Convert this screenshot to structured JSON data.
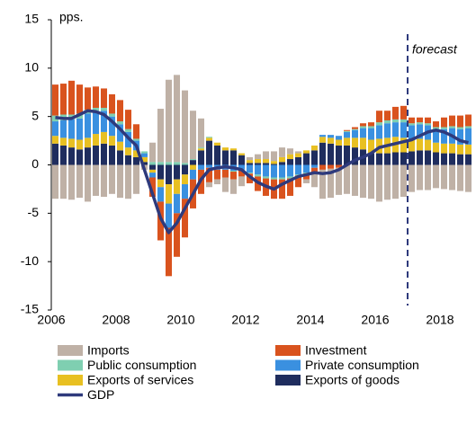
{
  "chart_data": {
    "type": "stacked_bar",
    "y_label": "pps.",
    "annotation": {
      "text": "forecast",
      "x": 2017
    },
    "x": [
      2006,
      2006.25,
      2006.5,
      2006.75,
      2007,
      2007.25,
      2007.5,
      2007.75,
      2008,
      2008.25,
      2008.5,
      2008.75,
      2009,
      2009.25,
      2009.5,
      2009.75,
      2010,
      2010.25,
      2010.5,
      2010.75,
      2011,
      2011.25,
      2011.5,
      2011.75,
      2012,
      2012.25,
      2012.5,
      2012.75,
      2013,
      2013.25,
      2013.5,
      2013.75,
      2014,
      2014.25,
      2014.5,
      2014.75,
      2015,
      2015.25,
      2015.5,
      2015.75,
      2016,
      2016.25,
      2016.5,
      2016.75,
      2017,
      2017.25,
      2017.5,
      2017.75,
      2018,
      2018.25,
      2018.5,
      2018.75
    ],
    "xlim": [
      2006,
      2019
    ],
    "xticks": [
      2006,
      2008,
      2010,
      2012,
      2014,
      2016,
      2018
    ],
    "ylim": [
      -15,
      15
    ],
    "yticks": [
      -15,
      -10,
      -5,
      0,
      5,
      10,
      15
    ],
    "series": [
      {
        "name": "Imports",
        "color": "#bfb1a6",
        "values": [
          -3.5,
          -3.5,
          -3.6,
          -3.4,
          -3.8,
          -3.2,
          -3.3,
          -3.0,
          -3.4,
          -3.5,
          -3.0,
          -0.5,
          2.0,
          5.5,
          8.5,
          9.0,
          7.5,
          5.0,
          3.0,
          -0.5,
          -0.5,
          -1.5,
          -1.5,
          -1.0,
          0.3,
          0.5,
          0.8,
          1.0,
          1.0,
          0.6,
          0.2,
          -0.4,
          -1.5,
          -3.0,
          -3.0,
          -2.8,
          -3.0,
          -3.2,
          -3.4,
          -3.5,
          -3.8,
          -3.6,
          -3.5,
          -3.3,
          -2.8,
          -2.6,
          -2.6,
          -2.4,
          -2.5,
          -2.6,
          -2.7,
          -2.8
        ]
      },
      {
        "name": "Investment",
        "color": "#d9531e",
        "values": [
          3.2,
          3.2,
          3.5,
          3.0,
          2.3,
          2.2,
          2.0,
          2.0,
          2.2,
          2.0,
          1.5,
          0,
          -2.0,
          -4.0,
          -5.0,
          -4.5,
          -4.0,
          -3.0,
          -2.5,
          -1.5,
          -1.0,
          -0.8,
          -0.8,
          -0.6,
          -1.0,
          -1.5,
          -1.8,
          -2.0,
          -2.0,
          -1.8,
          -1.2,
          -0.6,
          -0.5,
          -0.5,
          -0.4,
          -0.3,
          0.1,
          0.2,
          0.3,
          0.4,
          1.2,
          1.0,
          1.3,
          1.4,
          0.6,
          0.5,
          0.6,
          0.6,
          1.0,
          1.1,
          1.2,
          1.2
        ]
      },
      {
        "name": "Public consumption",
        "color": "#7fcfb1",
        "values": [
          0.6,
          0.6,
          0.5,
          0.5,
          0.4,
          0.3,
          0.3,
          0.3,
          0.3,
          0.3,
          0.2,
          0.2,
          0.3,
          0.3,
          0.3,
          0.3,
          0.2,
          0.1,
          0.1,
          0.1,
          0,
          0,
          -0.1,
          -0.1,
          -0.1,
          -0.2,
          -0.2,
          -0.2,
          -0.2,
          -0.2,
          -0.1,
          -0.1,
          0,
          0,
          0,
          0,
          0.1,
          0.1,
          0.2,
          0.2,
          0.3,
          0.3,
          0.3,
          0.3,
          0.2,
          0.2,
          0.2,
          0.2,
          0.2,
          0.2,
          0.2,
          0.2
        ]
      },
      {
        "name": "Private consumption",
        "color": "#3a90e0",
        "values": [
          1.5,
          1.8,
          2.0,
          2.2,
          2.5,
          2.4,
          2.2,
          2.0,
          1.8,
          1.6,
          1.0,
          0.4,
          -0.5,
          -1.5,
          -2.5,
          -2.0,
          -1.5,
          -1.0,
          -0.5,
          -0.3,
          -0.5,
          -0.5,
          -0.6,
          -0.5,
          -0.8,
          -1.0,
          -1.2,
          -1.3,
          -1.3,
          -1.2,
          -1.0,
          -0.8,
          -0.3,
          0.2,
          0.3,
          0.4,
          0.6,
          0.8,
          1.0,
          1.2,
          1.4,
          1.5,
          1.5,
          1.6,
          1.5,
          1.5,
          1.5,
          1.4,
          1.5,
          1.6,
          1.6,
          1.7
        ]
      },
      {
        "name": "Exports of services",
        "color": "#e8c022",
        "values": [
          0.8,
          0.8,
          0.9,
          1.0,
          1.0,
          1.2,
          1.2,
          1.0,
          0.9,
          0.8,
          0.7,
          0.5,
          -0.3,
          -0.8,
          -2.0,
          -1.5,
          -1.0,
          -0.5,
          0.2,
          0.3,
          0.3,
          0.3,
          0.2,
          0.2,
          0.3,
          0.4,
          0.4,
          0.3,
          0.5,
          0.5,
          0.4,
          0.3,
          0.5,
          0.6,
          0.6,
          0.6,
          0.8,
          1.0,
          1.2,
          1.4,
          1.5,
          1.6,
          1.6,
          1.5,
          1.2,
          1.2,
          1.1,
          1.0,
          1.0,
          1.0,
          1.0,
          1.0
        ]
      },
      {
        "name": "Exports of goods",
        "color": "#1f2d5e",
        "values": [
          2.2,
          2.0,
          1.8,
          1.6,
          1.8,
          2.0,
          2.2,
          2.0,
          1.5,
          1.0,
          0.8,
          0.3,
          -0.5,
          -1.5,
          -2.0,
          -1.5,
          -1.0,
          0.5,
          1.5,
          2.5,
          2.0,
          1.5,
          1.5,
          1.0,
          0.2,
          0.2,
          0.2,
          0.1,
          0.3,
          0.6,
          0.8,
          1.2,
          1.5,
          2.3,
          2.2,
          2.0,
          2.0,
          1.8,
          1.6,
          1.2,
          1.2,
          1.2,
          1.3,
          1.3,
          1.4,
          1.5,
          1.5,
          1.3,
          1.2,
          1.2,
          1.1,
          1.1
        ]
      },
      {
        "name": "GDP",
        "color": "#2e3a7c",
        "type": "line",
        "values": [
          4.9,
          4.8,
          4.8,
          5.2,
          5.6,
          5.5,
          5.2,
          4.5,
          3.7,
          2.8,
          2.0,
          -0.5,
          -3.0,
          -5.5,
          -7.0,
          -6.0,
          -4.5,
          -3.0,
          -1.5,
          -0.5,
          -0.3,
          -0.2,
          -0.3,
          -0.5,
          -1.2,
          -1.8,
          -2.2,
          -2.5,
          -2.0,
          -1.6,
          -1.2,
          -1.0,
          -0.8,
          -0.9,
          -0.8,
          -0.5,
          0,
          0.5,
          0.8,
          1.2,
          1.8,
          2.0,
          2.2,
          2.4,
          2.6,
          3.0,
          3.4,
          3.6,
          3.4,
          3.0,
          2.5,
          2.3
        ]
      }
    ]
  }
}
